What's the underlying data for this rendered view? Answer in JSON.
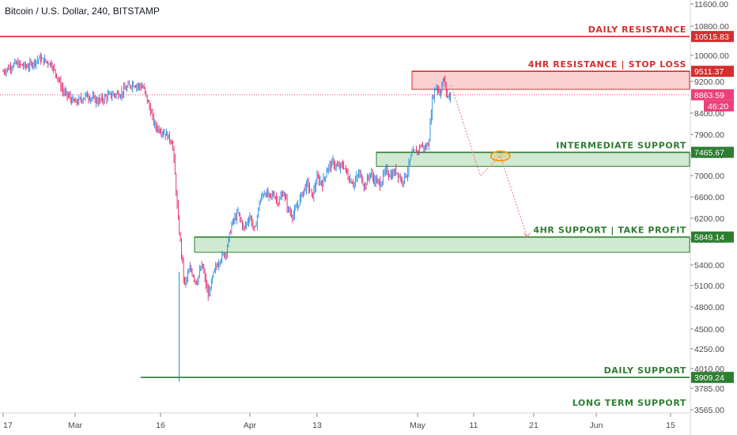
{
  "header": {
    "title": "Bitcoin / U.S. Dollar, 240, BITSTAMP"
  },
  "colors": {
    "resistance": "#d32f2f",
    "support": "#2e7d32",
    "support_fill": "#c8e6c9",
    "resistance_fill": "#f8c9c9",
    "candle_up": "#1e88e5",
    "candle_down": "#e91e63",
    "current_price": "#ec407a",
    "projection": "#e57373",
    "highlight": "#f39c12"
  },
  "chart_data": {
    "type": "candlestick",
    "title": "Bitcoin / U.S. Dollar, 240, BITSTAMP",
    "y_ticks": [
      "11600.00",
      "10800.00",
      "10000.00",
      "9200.00",
      "8400.00",
      "7900.00",
      "7400.00",
      "7000.00",
      "6600.00",
      "6200.00",
      "5800.00",
      "5400.00",
      "5100.00",
      "4800.00",
      "4500.00",
      "4250.00",
      "4010.00",
      "3785.00",
      "3565.00"
    ],
    "x_ticks": [
      "17",
      "Mar",
      "16",
      "Apr",
      "13",
      "May",
      "11",
      "21",
      "Jun",
      "15"
    ],
    "levels": [
      {
        "name": "DAILY RESISTANCE",
        "price": 10515.83,
        "price_label": "10515.83",
        "kind": "resistance",
        "style": "line"
      },
      {
        "name": "4HR RESISTANCE  |  STOP LOSS",
        "price": 9511.37,
        "price_label": "9511.37",
        "kind": "resistance",
        "style": "zone",
        "zone_low": 9000
      },
      {
        "name": "INTERMEDIATE SUPPORT",
        "price": 7465.67,
        "price_label": "7465.67",
        "kind": "support",
        "style": "zone",
        "zone_low": 7180
      },
      {
        "name": "4HR SUPPORT  |  TAKE PROFIT",
        "price": 5849.14,
        "price_label": "5849.14",
        "kind": "support",
        "style": "zone",
        "zone_low": 5600
      },
      {
        "name": "DAILY SUPPORT",
        "price": 3909.24,
        "price_label": "3909.24",
        "kind": "support",
        "style": "line"
      },
      {
        "name": "LONG TERM SUPPORT",
        "price": 3565.0,
        "price_label": "",
        "kind": "support",
        "style": "label"
      }
    ],
    "current_price": {
      "value": 8863.59,
      "label": "8863.59",
      "countdown": "46:20"
    },
    "path": [
      {
        "d": 0,
        "p": 9500
      },
      {
        "d": 2,
        "p": 9750
      },
      {
        "d": 4,
        "p": 9650
      },
      {
        "d": 6,
        "p": 9900
      },
      {
        "d": 8,
        "p": 9750
      },
      {
        "d": 10,
        "p": 8950
      },
      {
        "d": 12,
        "p": 8650
      },
      {
        "d": 14,
        "p": 8850
      },
      {
        "d": 16,
        "p": 8700
      },
      {
        "d": 18,
        "p": 8850
      },
      {
        "d": 20,
        "p": 8900
      },
      {
        "d": 22,
        "p": 9150
      },
      {
        "d": 24,
        "p": 9050
      },
      {
        "d": 26,
        "p": 8100
      },
      {
        "d": 28,
        "p": 7900
      },
      {
        "d": 29,
        "p": 7700
      },
      {
        "d": 30,
        "p": 6100
      },
      {
        "d": 31,
        "p": 5100
      },
      {
        "d": 32,
        "p": 5350
      },
      {
        "d": 33,
        "p": 5150
      },
      {
        "d": 34,
        "p": 5400
      },
      {
        "d": 35,
        "p": 4950
      },
      {
        "d": 36,
        "p": 5300
      },
      {
        "d": 37,
        "p": 5500
      },
      {
        "d": 38,
        "p": 5600
      },
      {
        "d": 39,
        "p": 6100
      },
      {
        "d": 40,
        "p": 6300
      },
      {
        "d": 41,
        "p": 6000
      },
      {
        "d": 42,
        "p": 6250
      },
      {
        "d": 43,
        "p": 5950
      },
      {
        "d": 44,
        "p": 6500
      },
      {
        "d": 45,
        "p": 6700
      },
      {
        "d": 46,
        "p": 6600
      },
      {
        "d": 47,
        "p": 6650
      },
      {
        "d": 48,
        "p": 6500
      },
      {
        "d": 49,
        "p": 6700
      },
      {
        "d": 50,
        "p": 6350
      },
      {
        "d": 51,
        "p": 6250
      },
      {
        "d": 52,
        "p": 6450
      },
      {
        "d": 53,
        "p": 6700
      },
      {
        "d": 54,
        "p": 6850
      },
      {
        "d": 55,
        "p": 6600
      },
      {
        "d": 56,
        "p": 6950
      },
      {
        "d": 57,
        "p": 6850
      },
      {
        "d": 58,
        "p": 7150
      },
      {
        "d": 59,
        "p": 7250
      },
      {
        "d": 60,
        "p": 7150
      },
      {
        "d": 61,
        "p": 7200
      },
      {
        "d": 62,
        "p": 6950
      },
      {
        "d": 63,
        "p": 6850
      },
      {
        "d": 64,
        "p": 7050
      },
      {
        "d": 65,
        "p": 6800
      },
      {
        "d": 66,
        "p": 7050
      },
      {
        "d": 67,
        "p": 6900
      },
      {
        "d": 68,
        "p": 6850
      },
      {
        "d": 69,
        "p": 7100
      },
      {
        "d": 70,
        "p": 7000
      },
      {
        "d": 71,
        "p": 7100
      },
      {
        "d": 72,
        "p": 6900
      },
      {
        "d": 73,
        "p": 7050
      },
      {
        "d": 74,
        "p": 7450
      },
      {
        "d": 75,
        "p": 7500
      },
      {
        "d": 76,
        "p": 7650
      },
      {
        "d": 77,
        "p": 7550
      },
      {
        "d": 78,
        "p": 7700
      },
      {
        "d": 79,
        "p": 8800
      },
      {
        "d": 80,
        "p": 9100
      },
      {
        "d": 81,
        "p": 8900
      },
      {
        "d": 82,
        "p": 9300
      },
      {
        "d": 83,
        "p": 8800
      },
      {
        "d": 84,
        "p": 8864
      }
    ],
    "projection": [
      {
        "d": 84,
        "p": 9100
      },
      {
        "d": 91,
        "p": 7000
      },
      {
        "d": 94,
        "p": 7380
      },
      {
        "d": 98,
        "p": 5850
      }
    ],
    "highlight_circle": {
      "d": 94,
      "p": 7380
    }
  }
}
